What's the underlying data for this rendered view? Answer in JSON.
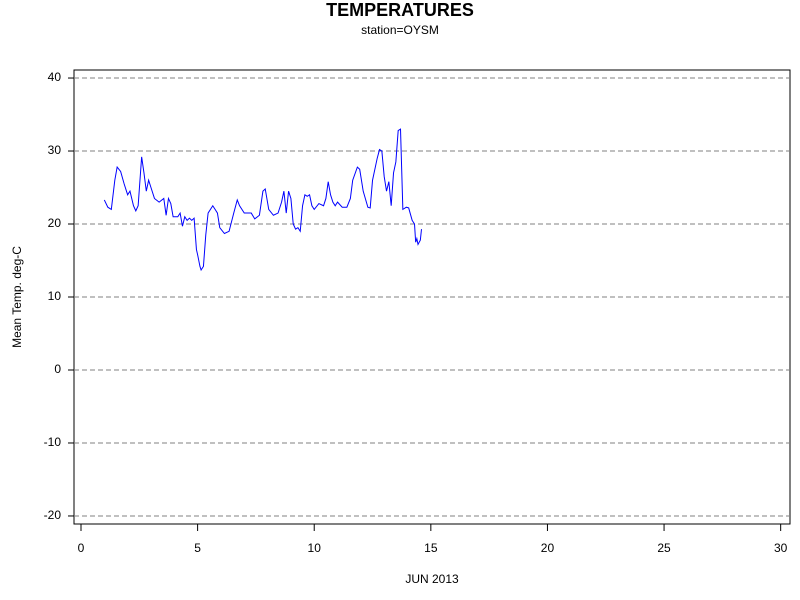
{
  "chart_data": {
    "type": "line",
    "title": "TEMPERATURES",
    "subtitle": "station=OYSM",
    "x_label": "JUN 2013",
    "y_label": "Mean Temp. deg-C",
    "xlim": [
      -0.3,
      30.4
    ],
    "xticks": [
      0,
      5,
      10,
      15,
      20,
      25,
      30
    ],
    "ylim": [
      -21.1,
      41.1
    ],
    "yticks": [
      -20,
      -10,
      0,
      10,
      20,
      30,
      40
    ],
    "grid": true,
    "x": [
      1.0,
      1.15,
      1.3,
      1.45,
      1.55,
      1.7,
      1.85,
      2.0,
      2.1,
      2.25,
      2.35,
      2.45,
      2.6,
      2.7,
      2.8,
      2.9,
      3.0,
      3.15,
      3.35,
      3.55,
      3.65,
      3.75,
      3.85,
      3.95,
      4.15,
      4.25,
      4.35,
      4.45,
      4.55,
      4.65,
      4.75,
      4.85,
      4.95,
      5.0,
      5.1,
      5.15,
      5.25,
      5.35,
      5.45,
      5.65,
      5.75,
      5.85,
      5.95,
      6.15,
      6.35,
      6.55,
      6.7,
      6.8,
      7.0,
      7.3,
      7.45,
      7.65,
      7.8,
      7.9,
      8.05,
      8.25,
      8.45,
      8.6,
      8.7,
      8.8,
      8.9,
      9.0,
      9.1,
      9.2,
      9.3,
      9.4,
      9.5,
      9.6,
      9.7,
      9.8,
      9.9,
      10.0,
      10.2,
      10.4,
      10.5,
      10.6,
      10.7,
      10.8,
      10.9,
      11.0,
      11.2,
      11.4,
      11.55,
      11.65,
      11.85,
      11.95,
      12.1,
      12.3,
      12.4,
      12.5,
      12.7,
      12.8,
      12.9,
      13.0,
      13.1,
      13.2,
      13.3,
      13.4,
      13.5,
      13.6,
      13.7,
      13.8,
      13.95,
      14.05,
      14.2,
      14.3,
      14.35,
      14.4,
      14.45,
      14.55,
      14.6
    ],
    "series": [
      {
        "color": "#0000ff",
        "values": [
          23.3,
          22.3,
          22.0,
          26.0,
          27.8,
          27.2,
          25.5,
          24.0,
          24.5,
          22.5,
          21.8,
          22.5,
          29.2,
          27.0,
          24.5,
          26.0,
          25.0,
          23.5,
          23.0,
          23.5,
          21.2,
          23.5,
          22.8,
          21.0,
          21.0,
          21.5,
          19.7,
          21.0,
          20.5,
          20.8,
          20.5,
          20.8,
          16.5,
          15.8,
          14.2,
          13.7,
          14.2,
          18.5,
          21.5,
          22.5,
          22.0,
          21.5,
          19.5,
          18.7,
          19.0,
          21.5,
          23.3,
          22.5,
          21.5,
          21.5,
          20.7,
          21.2,
          24.5,
          24.8,
          22.0,
          21.2,
          21.5,
          23.0,
          24.5,
          21.5,
          24.5,
          23.5,
          20.0,
          19.3,
          19.5,
          19.0,
          22.5,
          24.0,
          23.8,
          24.0,
          22.5,
          22.0,
          22.8,
          22.5,
          23.5,
          25.8,
          24.0,
          23.0,
          22.5,
          23.0,
          22.3,
          22.3,
          23.5,
          26.0,
          27.8,
          27.5,
          24.5,
          22.3,
          22.2,
          26.0,
          29.0,
          30.2,
          30.0,
          26.5,
          24.5,
          25.8,
          22.5,
          27.0,
          28.5,
          32.8,
          33.0,
          22.0,
          22.3,
          22.2,
          20.5,
          20.0,
          17.5,
          18.0,
          17.2,
          17.8,
          19.3
        ]
      }
    ]
  }
}
